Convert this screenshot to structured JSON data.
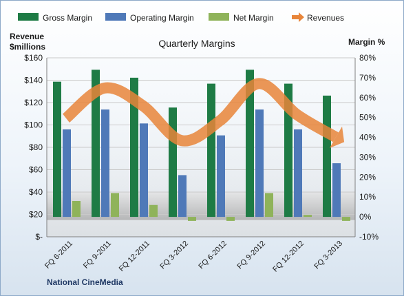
{
  "chart_data": {
    "type": "bar",
    "title": "Quarterly Margins",
    "left_axis_title_line1": "Revenue",
    "left_axis_title_line2": "$millions",
    "right_axis_title": "Margin %",
    "footer": "National CineMedia",
    "categories": [
      "FQ 6-2011",
      "FQ 9-2011",
      "FQ 12-2011",
      "FQ 3-2012",
      "FQ 6-2012",
      "FQ 9-2012",
      "FQ 12-2012",
      "FQ 3-2013"
    ],
    "left_ticks": [
      "$-",
      "$20",
      "$40",
      "$60",
      "$80",
      "$100",
      "$120",
      "$140",
      "$160"
    ],
    "right_ticks": [
      "-10%",
      "0%",
      "10%",
      "20%",
      "30%",
      "40%",
      "50%",
      "60%",
      "70%",
      "80%"
    ],
    "ylim_left": [
      0,
      160
    ],
    "ylim_right": [
      -10,
      80
    ],
    "series": [
      {
        "name": "Gross Margin",
        "axis": "right",
        "color": "#1e7b45",
        "values": [
          68,
          74,
          70,
          55,
          67,
          74,
          67,
          61
        ]
      },
      {
        "name": "Operating Margin",
        "axis": "right",
        "color": "#4f79b8",
        "values": [
          44,
          54,
          47,
          21,
          41,
          54,
          44,
          27
        ]
      },
      {
        "name": "Net Margin",
        "axis": "right",
        "color": "#8fb35a",
        "values": [
          8,
          12,
          6,
          -2,
          -2,
          12,
          1,
          -2
        ]
      },
      {
        "name": "Revenues",
        "axis": "left",
        "type": "line",
        "color": "#e8853a",
        "values": [
          106,
          133,
          117,
          86,
          104,
          137,
          109,
          89
        ]
      }
    ],
    "legend_position": "top",
    "grid": true
  }
}
